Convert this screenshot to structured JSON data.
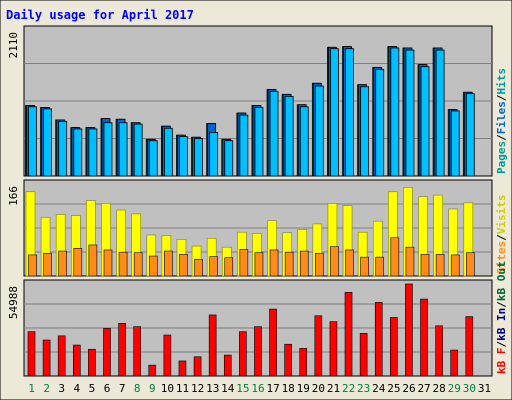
{
  "chart_data": {
    "type": "bar",
    "title": "Daily usage for April 2017",
    "grid": true,
    "colors": {
      "frame_bg": "#ece9d8",
      "plot_bg": "#c0c0c0",
      "title_text": "#0000ff",
      "pages_teal": "#009999",
      "files_blue": "#0066cc",
      "hits_cyan": "#00bfff",
      "visits_yellow": "#ffff00",
      "sites_orange": "#ff8c1a",
      "kb_red": "#ff0000",
      "kb_in_navy": "#000080",
      "kb_out_green": "#006633",
      "weekend_day_label": "#008040",
      "day_label": "#000000"
    },
    "days": [
      {
        "label": "1",
        "weekend": true
      },
      {
        "label": "2",
        "weekend": true
      },
      {
        "label": "3",
        "weekend": false
      },
      {
        "label": "4",
        "weekend": false
      },
      {
        "label": "5",
        "weekend": false
      },
      {
        "label": "6",
        "weekend": false
      },
      {
        "label": "7",
        "weekend": false
      },
      {
        "label": "8",
        "weekend": true
      },
      {
        "label": "9",
        "weekend": true
      },
      {
        "label": "10",
        "weekend": false
      },
      {
        "label": "11",
        "weekend": false
      },
      {
        "label": "12",
        "weekend": false
      },
      {
        "label": "13",
        "weekend": false
      },
      {
        "label": "14",
        "weekend": false
      },
      {
        "label": "15",
        "weekend": true
      },
      {
        "label": "16",
        "weekend": true
      },
      {
        "label": "17",
        "weekend": false
      },
      {
        "label": "18",
        "weekend": false
      },
      {
        "label": "19",
        "weekend": false
      },
      {
        "label": "20",
        "weekend": false
      },
      {
        "label": "21",
        "weekend": false
      },
      {
        "label": "22",
        "weekend": true
      },
      {
        "label": "23",
        "weekend": true
      },
      {
        "label": "24",
        "weekend": false
      },
      {
        "label": "25",
        "weekend": false
      },
      {
        "label": "26",
        "weekend": false
      },
      {
        "label": "27",
        "weekend": false
      },
      {
        "label": "28",
        "weekend": false
      },
      {
        "label": "29",
        "weekend": true
      },
      {
        "label": "30",
        "weekend": true
      },
      {
        "label": "31",
        "weekend": false
      }
    ],
    "panels": [
      {
        "id": "hits",
        "max_label": "2110",
        "ymax": 2110,
        "right_label": [
          {
            "text": "Pages",
            "color": "#009999"
          },
          {
            "text": "/",
            "color": "#000000"
          },
          {
            "text": "Files",
            "color": "#0066cc"
          },
          {
            "text": "/",
            "color": "#000000"
          },
          {
            "text": "Hits",
            "color": "#009999"
          }
        ],
        "series": [
          {
            "name": "Pages",
            "color": "#009999",
            "values": [
              1020,
              990,
              810,
              700,
              700,
              830,
              820,
              770,
              530,
              720,
              590,
              560,
              760,
              530,
              910,
              1020,
              1250,
              1180,
              1030,
              1340,
              1860,
              1870,
              1320,
              1570,
              1870,
              1850,
              1610,
              1850,
              960,
              1210,
              null
            ]
          },
          {
            "name": "Files",
            "color": "#0066cc",
            "values": [
              1020,
              990,
              810,
              700,
              700,
              830,
              820,
              770,
              530,
              720,
              590,
              560,
              760,
              530,
              910,
              1020,
              1250,
              1180,
              1030,
              1340,
              1860,
              1870,
              1320,
              1570,
              1870,
              1850,
              1610,
              1850,
              960,
              1210,
              null
            ]
          },
          {
            "name": "Hits",
            "color": "#00bfff",
            "values": [
              1000,
              970,
              790,
              680,
              680,
              770,
              770,
              750,
              510,
              690,
              570,
              540,
              630,
              510,
              880,
              990,
              1220,
              1150,
              1000,
              1300,
              1840,
              1840,
              1290,
              1540,
              1850,
              1820,
              1580,
              1820,
              940,
              1190,
              null
            ]
          }
        ]
      },
      {
        "id": "visits",
        "max_label": "166",
        "ymax": 166,
        "right_label": [
          {
            "text": "Sites",
            "color": "#ff8c1a"
          },
          {
            "text": "/",
            "color": "#000000"
          },
          {
            "text": "Visits",
            "color": "#cccc00"
          }
        ],
        "series": [
          {
            "name": "Visits",
            "color": "#ffff00",
            "values": [
              152,
              106,
              111,
              109,
              136,
              131,
              119,
              112,
              74,
              73,
              66,
              54,
              68,
              52,
              79,
              77,
              100,
              78,
              84,
              94,
              131,
              127,
              79,
              99,
              152,
              160,
              143,
              146,
              121,
              132,
              null
            ]
          },
          {
            "name": "Sites",
            "color": "#ff8c1a",
            "values": [
              38,
              41,
              45,
              50,
              56,
              47,
              43,
              42,
              36,
              45,
              39,
              30,
              35,
              33,
              48,
              42,
              47,
              43,
              45,
              41,
              53,
              47,
              34,
              34,
              69,
              52,
              39,
              39,
              38,
              42,
              null
            ]
          }
        ]
      },
      {
        "id": "kbytes",
        "max_label": "54988",
        "ymax": 54988,
        "right_label": [
          {
            "text": "kB F",
            "color": "#ff0000"
          },
          {
            "text": "/",
            "color": "#000000"
          },
          {
            "text": "kB In",
            "color": "#000080"
          },
          {
            "text": "/",
            "color": "#000000"
          },
          {
            "text": "kB Out",
            "color": "#006633"
          }
        ],
        "series": [
          {
            "name": "kB F",
            "color": "#ff0000",
            "values": [
              26500,
              21500,
              24000,
              18500,
              16000,
              28500,
              31500,
              29500,
              6500,
              24500,
              9000,
              11500,
              36500,
              12500,
              26500,
              29500,
              40000,
              19000,
              16500,
              36000,
              32500,
              50000,
              25500,
              44000,
              35000,
              55000,
              46000,
              30000,
              15500,
              35500,
              null
            ]
          }
        ]
      }
    ]
  }
}
